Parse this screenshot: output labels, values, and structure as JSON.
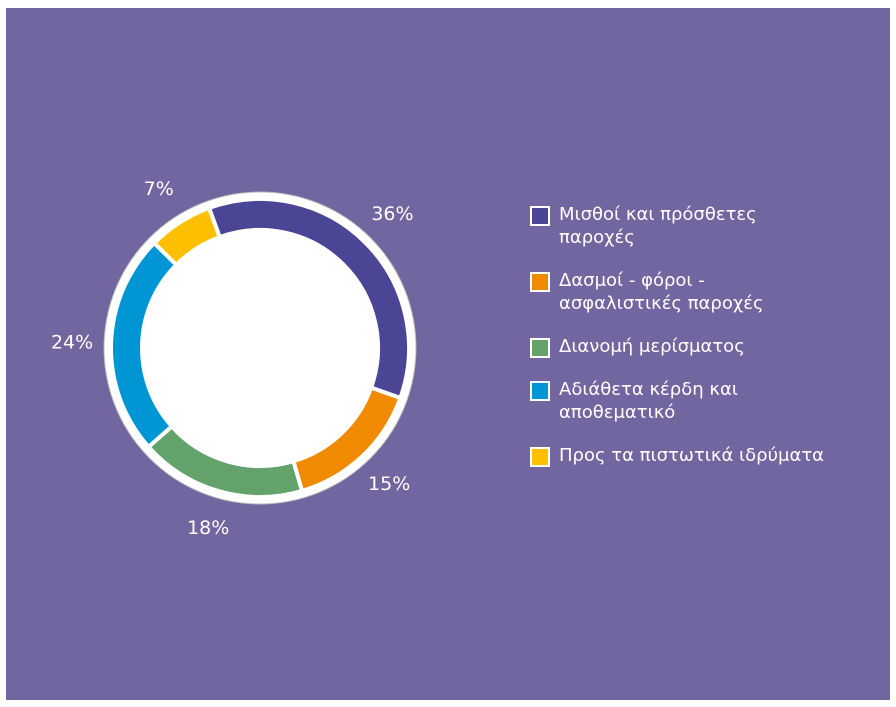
{
  "chart_data": {
    "type": "donut",
    "categories": [
      "Μισθοί και πρόσθετες παροχές",
      "Δασμοί - φόροι - ασφαλιστικές παροχές",
      "Διανομή μερίσματος",
      "Αδιάθετα κέρδη και αποθεματικό",
      "Προς τα πιστωτικά ιδρύματα"
    ],
    "values": [
      36,
      15,
      18,
      24,
      7
    ],
    "value_labels": [
      "36%",
      "15%",
      "18%",
      "24%",
      "7%"
    ],
    "colors": [
      "#4b4596",
      "#f08a00",
      "#63a36b",
      "#0096d6",
      "#fcc000"
    ],
    "legend": "right"
  }
}
